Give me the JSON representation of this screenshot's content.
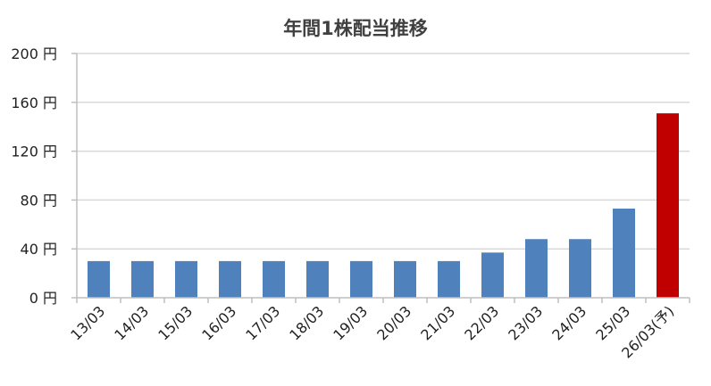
{
  "chart_data": {
    "type": "bar",
    "title": "年間1株配当推移",
    "xlabel": "",
    "ylabel": "",
    "categories": [
      "13/03",
      "14/03",
      "15/03",
      "16/03",
      "17/03",
      "18/03",
      "19/03",
      "20/03",
      "21/03",
      "22/03",
      "23/03",
      "24/03",
      "25/03",
      "26/03(予)"
    ],
    "series": [
      {
        "values": [
          30,
          30,
          30,
          30,
          30,
          30,
          30,
          30,
          30,
          37,
          48,
          48,
          73,
          151
        ],
        "colors": [
          "#4f81bd",
          "#4f81bd",
          "#4f81bd",
          "#4f81bd",
          "#4f81bd",
          "#4f81bd",
          "#4f81bd",
          "#4f81bd",
          "#4f81bd",
          "#4f81bd",
          "#4f81bd",
          "#4f81bd",
          "#4f81bd",
          "#c00000"
        ]
      }
    ],
    "ylim": [
      0,
      200
    ],
    "yticks": [
      0,
      40,
      80,
      120,
      160,
      200
    ],
    "ytick_labels": [
      "0 円",
      "40 円",
      "80 円",
      "120 円",
      "160 円",
      "200 円"
    ],
    "grid": true,
    "legend": "none"
  },
  "colors": {
    "bar": "#4f81bd",
    "forecast_bar": "#c00000",
    "grid": "#d9d9d9",
    "axis": "#bfbfbf"
  }
}
